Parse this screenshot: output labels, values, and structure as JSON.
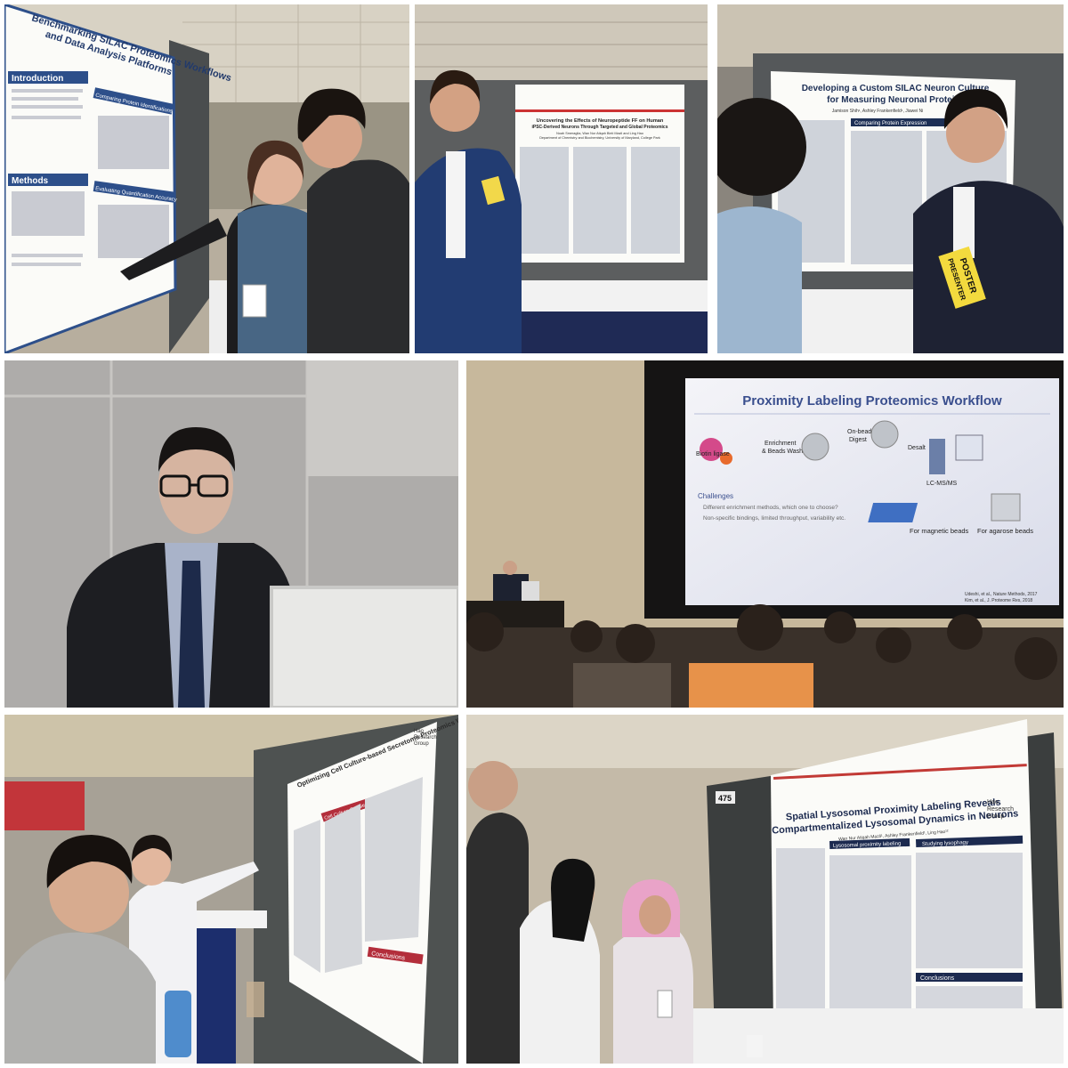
{
  "photo_1": {
    "poster": {
      "title_lines": [
        "Benchmarking SILAC Proteomics Workflows",
        "and Data Analysis Platforms"
      ],
      "sections": [
        "Introduction",
        "Methods",
        "Comparing Protein Identifications",
        "Evaluating Quantification Accuracy"
      ]
    }
  },
  "photo_2": {
    "poster": {
      "title_lines": [
        "Uncovering the Effects of Neuropeptide FF on Human",
        "iPSC-Derived Neurons Through Targeted and Global Proteomics"
      ],
      "authors": "Noah Smeraglia, Wan Nur Atiqah Binti Mazli and Ling Hao",
      "affiliation": "Department of Chemistry and Biochemistry, University of Maryland, College Park"
    }
  },
  "photo_3": {
    "poster": {
      "title_lines": [
        "Developing a Custom SILAC Neuron Culture",
        "for Measuring Neuronal Protein Tu"
      ],
      "authors": "Jamison Shih¹, Ashley Frankenfield¹, Jiawei Ni",
      "sections": [
        "Comparing Protein Expression"
      ]
    },
    "badge": [
      "POSTER",
      "PRESENTER"
    ]
  },
  "photo_5": {
    "slide": {
      "title": "Proximity Labeling Proteomics Workflow",
      "steps": [
        "Biotin ligase",
        "Enrichment",
        "& Beads Wash",
        "On-bead",
        "Digest",
        "Desalt",
        "LC-MS/MS"
      ],
      "challenges_heading": "Challenges",
      "challenges": [
        "Different enrichment methods, which one to choose?",
        "Non-specific bindings, limited throughput, variability etc."
      ],
      "bead_labels": [
        "For magnetic beads",
        "For agarose beads"
      ],
      "references": [
        "Udeshi, et al., Nature Methods, 2017",
        "Kim, et al., J. Proteome Res, 2018"
      ]
    }
  },
  "photo_6": {
    "poster": {
      "title": "Optimizing Cell Culture-based Secretome Proteomics Workflow",
      "sections": [
        "Cell Culture Conditions",
        "Conclusions"
      ],
      "group": [
        "Hao",
        "Research",
        "Group"
      ]
    }
  },
  "photo_7": {
    "poster": {
      "title_lines": [
        "Spatial Lysosomal Proximity Labeling Reveals",
        "Compartmentalized Lysosomal Dynamics in Neurons"
      ],
      "authors": "Wan Nur Atiqah Mazli¹, Ashley Frankenfield¹, Ling Hao¹²",
      "sections": [
        "Lysosomal proximity labeling",
        "Studying lysophagy",
        "Conclusions"
      ],
      "group": [
        "Hao",
        "Research",
        "Group"
      ],
      "board_number": "475"
    }
  }
}
